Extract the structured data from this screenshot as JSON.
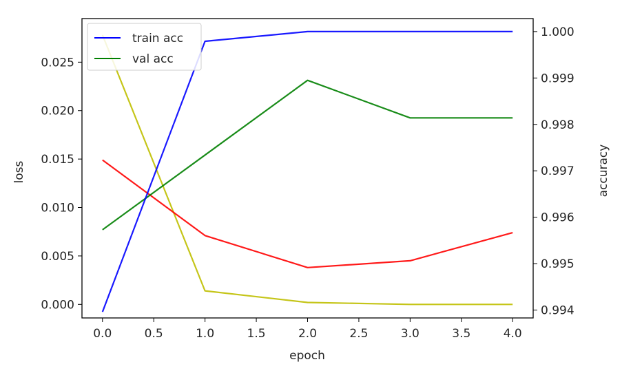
{
  "chart_data": {
    "type": "line",
    "xlabel": "epoch",
    "ylabel_left": "loss",
    "ylabel_right": "accuracy",
    "x": [
      0,
      1,
      2,
      3,
      4
    ],
    "xlim": [
      -0.2,
      4.2
    ],
    "ylim_left": [
      -0.0014,
      0.0295
    ],
    "ylim_right": [
      0.99383,
      1.00028
    ],
    "x_ticks": [
      "0.0",
      "0.5",
      "1.0",
      "1.5",
      "2.0",
      "2.5",
      "3.0",
      "3.5",
      "4.0"
    ],
    "left_ticks": [
      "0.000",
      "0.005",
      "0.010",
      "0.015",
      "0.020",
      "0.025"
    ],
    "right_ticks": [
      "0.994",
      "0.995",
      "0.996",
      "0.997",
      "0.998",
      "0.999",
      "1.000"
    ],
    "legend_position": "top-left",
    "series": [
      {
        "name": "train acc",
        "axis": "right",
        "color": "#0000ff",
        "values": [
          0.99396,
          0.99979,
          1.0,
          1.0,
          1.0
        ]
      },
      {
        "name": "val acc",
        "axis": "right",
        "color": "#008000",
        "values": [
          0.99573,
          0.99734,
          0.99895,
          0.99814,
          0.99814
        ]
      },
      {
        "axis": "left",
        "color": "#ff0000",
        "values": [
          0.0149,
          0.0071,
          0.0038,
          0.0045,
          0.0074
        ]
      },
      {
        "axis": "left",
        "color": "#bfbf00",
        "values": [
          0.0278,
          0.0014,
          0.0002,
          0.0,
          0.0
        ]
      }
    ]
  }
}
